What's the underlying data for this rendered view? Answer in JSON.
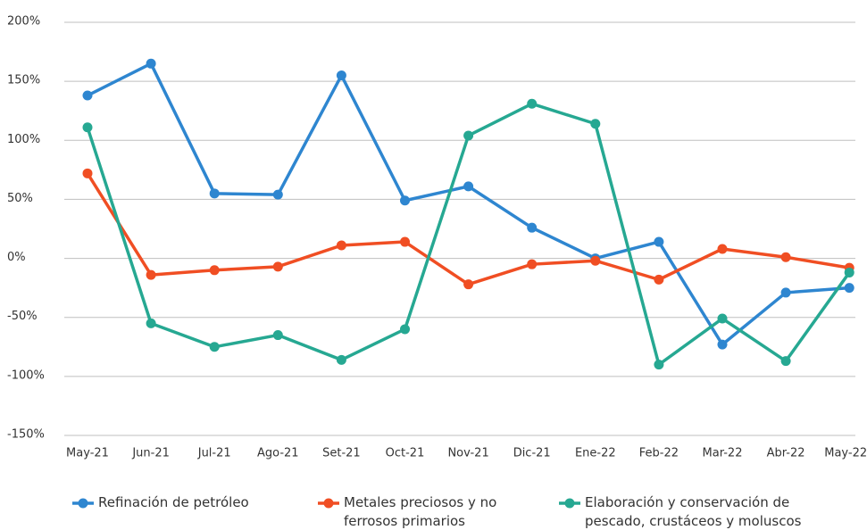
{
  "chart_data": {
    "type": "line",
    "categories": [
      "May-21",
      "Jun-21",
      "Jul-21",
      "Ago-21",
      "Set-21",
      "Oct-21",
      "Nov-21",
      "Dic-21",
      "Ene-22",
      "Feb-22",
      "Mar-22",
      "Abr-22",
      "May-22"
    ],
    "series": [
      {
        "name": "Refinación de petróleo",
        "color": "#2e86d0",
        "values": [
          138,
          165,
          55,
          54,
          155,
          49,
          61,
          26,
          0,
          14,
          -73,
          -29,
          -25
        ]
      },
      {
        "name": "Metales preciosos y no ferrosos primarios",
        "color": "#f04e23",
        "values": [
          72,
          -14,
          -10,
          -7,
          11,
          14,
          -22,
          -5,
          -2,
          -18,
          8,
          1,
          -8
        ]
      },
      {
        "name": "Elaboración y conservación de pescado, crustáceos y moluscos",
        "color": "#26a892",
        "values": [
          111,
          -55,
          -75,
          -65,
          -86,
          -60,
          104,
          131,
          114,
          -90,
          -51,
          -87,
          -12
        ]
      }
    ],
    "ylim": [
      -150,
      200
    ],
    "yticks": [
      {
        "value": -150,
        "label": "-150%"
      },
      {
        "value": -100,
        "label": "-100%"
      },
      {
        "value": -50,
        "label": "-50%"
      },
      {
        "value": 0,
        "label": "0%"
      },
      {
        "value": 50,
        "label": "50%"
      },
      {
        "value": 100,
        "label": "100%"
      },
      {
        "value": 150,
        "label": "150%"
      },
      {
        "value": 200,
        "label": "200%"
      }
    ],
    "grid": true
  }
}
